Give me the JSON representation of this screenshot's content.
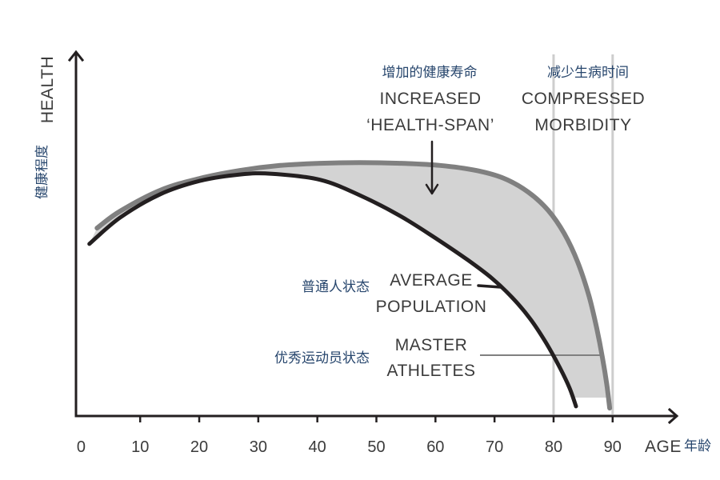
{
  "chart_data": {
    "type": "line",
    "xlabel": "AGE",
    "xlabel_zh": "年龄",
    "ylabel": "HEALTH",
    "ylabel_zh": "健康程度",
    "x_ticks": [
      0,
      10,
      20,
      30,
      40,
      50,
      60,
      70,
      80,
      90
    ],
    "xlim": [
      -1,
      101
    ],
    "ylim": [
      0,
      100
    ],
    "grid": false,
    "reference_lines": [
      80,
      90
    ],
    "series": [
      {
        "label": [
          "AVERAGE",
          "POPULATION"
        ],
        "label_zh": "普通人状态",
        "color": "#231f20",
        "points": [
          [
            1.4,
            47.8
          ],
          [
            6.6,
            55.1
          ],
          [
            13.4,
            61.6
          ],
          [
            20.1,
            65.3
          ],
          [
            26.9,
            67.1
          ],
          [
            32.3,
            67.3
          ],
          [
            40.5,
            65.6
          ],
          [
            47.2,
            61.3
          ],
          [
            54.0,
            55.6
          ],
          [
            60.1,
            49.3
          ],
          [
            65.5,
            43.3
          ],
          [
            69.6,
            38.2
          ],
          [
            73.0,
            32.9
          ],
          [
            76.0,
            27.1
          ],
          [
            78.7,
            20.4
          ],
          [
            81.1,
            13.3
          ],
          [
            82.7,
            7.8
          ],
          [
            83.8,
            2.7
          ]
        ]
      },
      {
        "label": [
          "MASTER",
          "ATHLETES"
        ],
        "label_zh": "优秀运动员状态",
        "color": "#808080",
        "points": [
          [
            2.7,
            52.2
          ],
          [
            6.6,
            56.9
          ],
          [
            13.4,
            62.7
          ],
          [
            20.1,
            66.0
          ],
          [
            26.9,
            68.2
          ],
          [
            33.7,
            69.6
          ],
          [
            40.5,
            70.2
          ],
          [
            47.2,
            70.4
          ],
          [
            54.0,
            70.2
          ],
          [
            60.8,
            69.6
          ],
          [
            66.9,
            68.2
          ],
          [
            71.6,
            66.0
          ],
          [
            75.7,
            62.2
          ],
          [
            79.1,
            57.1
          ],
          [
            81.8,
            50.7
          ],
          [
            84.1,
            42.7
          ],
          [
            86.0,
            33.3
          ],
          [
            87.3,
            24.4
          ],
          [
            88.3,
            16.0
          ],
          [
            89.0,
            8.9
          ],
          [
            89.5,
            2.2
          ]
        ]
      }
    ],
    "annotations": [
      {
        "text_zh": "增加的健康寿命",
        "text": [
          "INCREASED",
          "‘HEALTH-SPAN’"
        ]
      },
      {
        "text_zh": "减少生病时间",
        "text": [
          "COMPRESSED",
          "MORBIDITY"
        ]
      }
    ],
    "colors": {
      "axis": "#231f20",
      "shade": "#d3d3d3",
      "reference_line": "#cdcdcd",
      "label_zh": "#27466d",
      "label_en": "#3b3b3b"
    }
  }
}
